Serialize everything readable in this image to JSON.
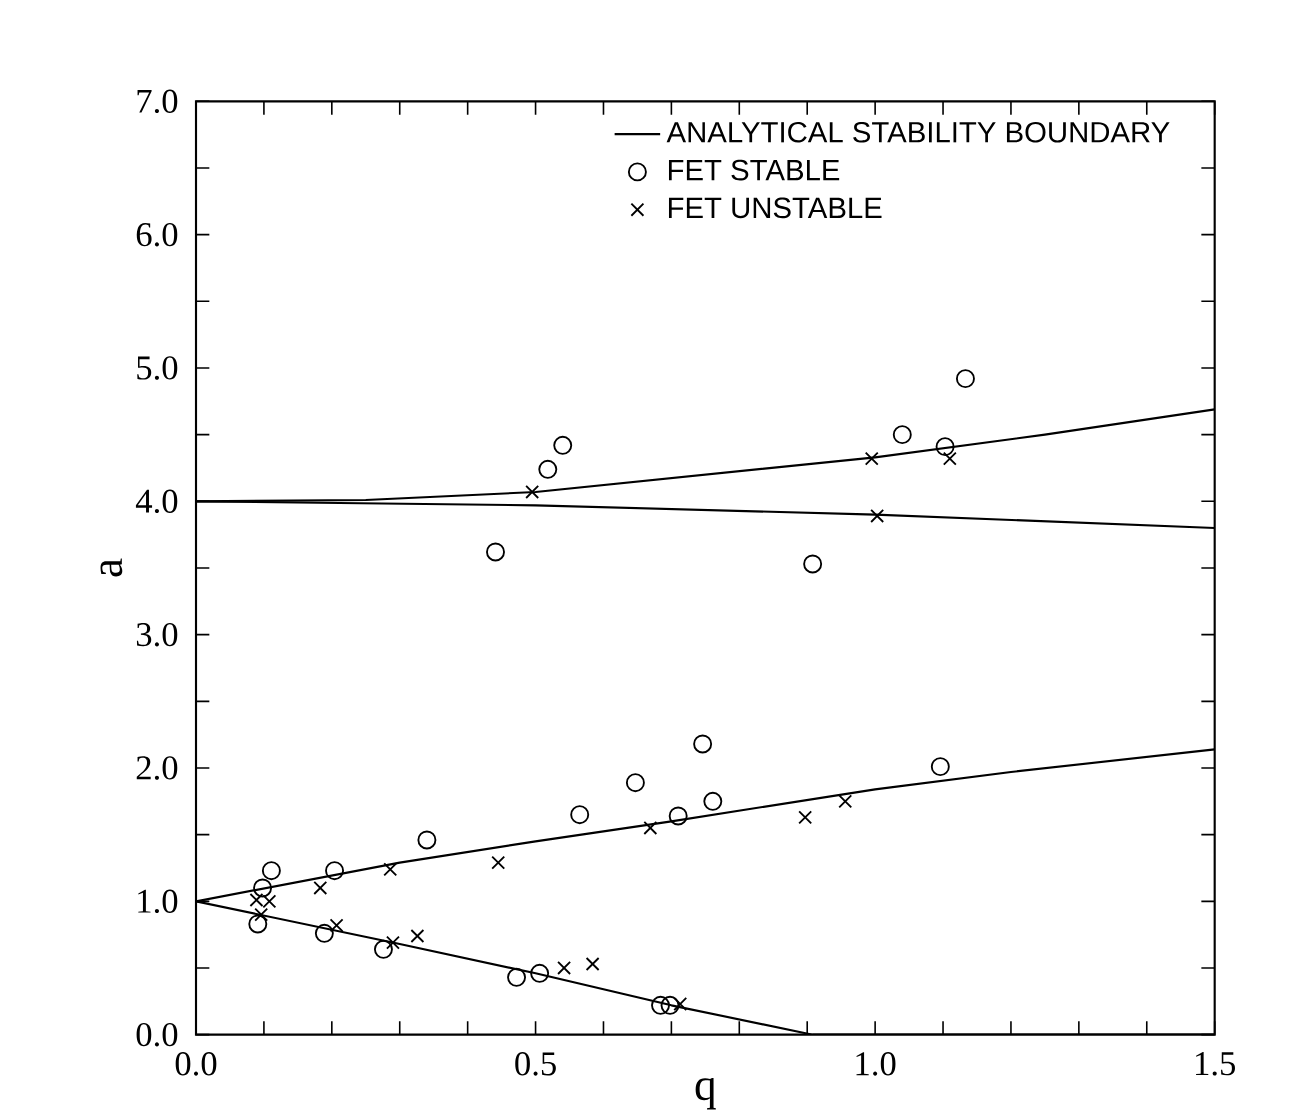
{
  "chart_data": {
    "type": "scatter",
    "xlabel": "q",
    "ylabel": "a",
    "xlim": [
      0,
      1.5
    ],
    "ylim": [
      0,
      7
    ],
    "xticks": [
      {
        "value": 0,
        "label": "0.0"
      },
      {
        "value": 0.1,
        "label": null
      },
      {
        "value": 0.2,
        "label": null
      },
      {
        "value": 0.3,
        "label": null
      },
      {
        "value": 0.4,
        "label": null
      },
      0.5,
      {
        "value": 0.6,
        "label": null
      },
      {
        "value": 0.7,
        "label": null
      },
      {
        "value": 0.8,
        "label": null
      },
      {
        "value": 0.9,
        "label": null
      },
      {
        "value": 1,
        "label": "1.0"
      },
      {
        "value": 1.1,
        "label": null
      },
      {
        "value": 1.2,
        "label": null
      },
      {
        "value": 1.3,
        "label": null
      },
      {
        "value": 1.4,
        "label": null
      },
      1.5
    ],
    "yticks": [
      {
        "value": 0,
        "label": "0.0"
      },
      {
        "value": 0.5,
        "label": null
      },
      {
        "value": 1,
        "label": "1.0"
      },
      {
        "value": 1.5,
        "label": null
      },
      {
        "value": 2,
        "label": "2.0"
      },
      {
        "value": 2.5,
        "label": null
      },
      {
        "value": 3,
        "label": "3.0"
      },
      {
        "value": 3.5,
        "label": null
      },
      {
        "value": 4,
        "label": "4.0"
      },
      {
        "value": 4.5,
        "label": null
      },
      {
        "value": 5,
        "label": "5.0"
      },
      {
        "value": 5.5,
        "label": null
      },
      {
        "value": 6,
        "label": "6.0"
      },
      {
        "value": 6.5,
        "label": null
      },
      {
        "value": 7,
        "label": "7.0"
      }
    ],
    "grid": false,
    "legend": "top right",
    "series": [
      {
        "name": "ANALYTICAL STABILITY BOUNDARY",
        "type": "line",
        "color": "#000000",
        "marker": "none",
        "x": [
          0,
          0.3,
          0.5,
          0.7,
          1.0,
          1.2,
          1.5
        ],
        "values": [
          1,
          1.29,
          1.45,
          1.6,
          1.84,
          1.97,
          2.14
        ]
      },
      {
        "type": "line",
        "color": "#000000",
        "marker": "none",
        "x": [
          0,
          0.3,
          0.5,
          0.7,
          0.908,
          1.5
        ],
        "values": [
          1,
          0.68,
          0.46,
          0.22,
          0,
          0
        ]
      },
      {
        "type": "line",
        "color": "#000000",
        "marker": "none",
        "x": [
          0,
          0.25,
          0.5,
          0.75,
          1.0,
          1.25,
          1.5
        ],
        "values": [
          4,
          4.01,
          4.07,
          4.2,
          4.33,
          4.5,
          4.69
        ]
      },
      {
        "type": "line",
        "color": "#000000",
        "marker": "none",
        "x": [
          0,
          0.5,
          1.0,
          1.5
        ],
        "values": [
          4,
          3.97,
          3.9,
          3.8
        ]
      },
      {
        "name": "FET STABLE",
        "color": "#000000",
        "marker": "circle",
        "x": [
          0.091,
          0.098,
          0.111,
          0.189,
          0.204,
          0.276,
          0.34,
          0.441,
          0.472,
          0.506,
          0.518,
          0.54,
          0.565,
          0.647,
          0.684,
          0.698,
          0.71,
          0.746,
          0.761,
          0.908,
          1.04,
          1.096,
          1.103,
          1.133
        ],
        "values": [
          0.83,
          1.1,
          1.23,
          0.76,
          1.23,
          0.64,
          1.46,
          3.62,
          0.43,
          0.46,
          4.24,
          4.42,
          1.65,
          1.89,
          0.22,
          0.22,
          1.64,
          2.18,
          1.75,
          3.53,
          4.5,
          2.01,
          4.41,
          4.92
        ]
      },
      {
        "name": "FET UNSTABLE",
        "color": "#000000",
        "marker": "cross",
        "x": [
          0.089,
          0.096,
          0.108,
          0.183,
          0.207,
          0.286,
          0.29,
          0.326,
          0.445,
          0.495,
          0.542,
          0.584,
          0.669,
          0.713,
          0.897,
          0.956,
          0.995,
          1.003,
          1.11
        ],
        "values": [
          1.01,
          0.9,
          1.0,
          1.1,
          0.82,
          1.24,
          0.69,
          0.74,
          1.29,
          4.07,
          0.5,
          0.53,
          1.55,
          0.23,
          1.63,
          1.75,
          4.32,
          3.89,
          4.32
        ]
      }
    ]
  }
}
